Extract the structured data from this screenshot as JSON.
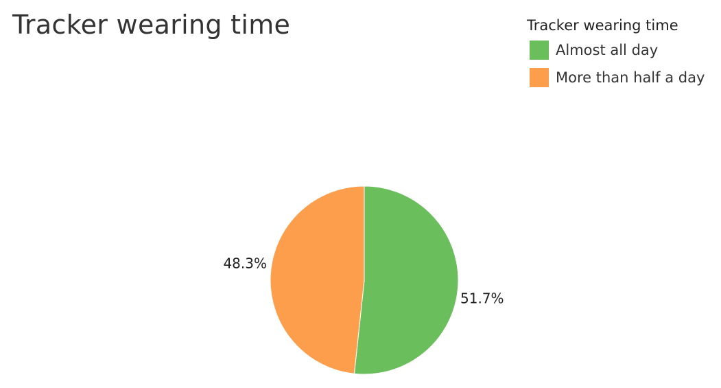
{
  "title": "Tracker wearing time",
  "legend": {
    "title": "Tracker wearing time",
    "items": [
      {
        "label": "Almost all day",
        "color": "#6abf5c"
      },
      {
        "label": "More than half a day",
        "color": "#fd9e4c"
      }
    ]
  },
  "chart_data": {
    "type": "pie",
    "title": "Tracker wearing time",
    "legend_title": "Tracker wearing time",
    "legend_position": "top-right",
    "slices": [
      {
        "label": "Almost all day",
        "value": 51.7,
        "value_label": "51.7%",
        "color": "#6abf5c"
      },
      {
        "label": "More than half a day",
        "value": 48.3,
        "value_label": "48.3%",
        "color": "#fd9e4c"
      }
    ]
  }
}
